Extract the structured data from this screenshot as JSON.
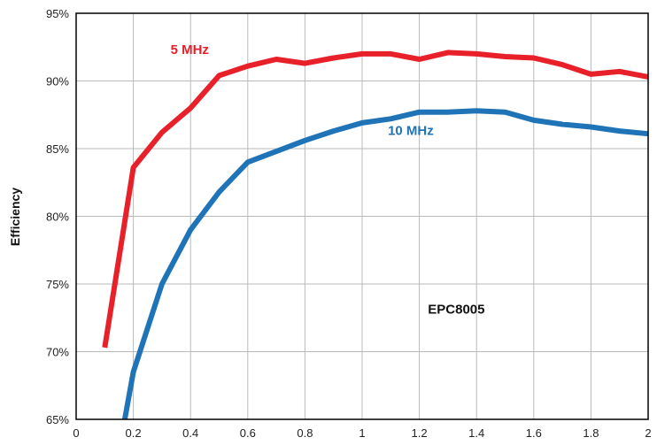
{
  "chart_data": {
    "type": "line",
    "title": "",
    "xlabel": "",
    "ylabel": "Efficiency",
    "xlim": [
      0,
      2
    ],
    "ylim": [
      65,
      95
    ],
    "grid": true,
    "x_ticks": [
      "0",
      "0.2",
      "0.4",
      "0.6",
      "0.8",
      "1",
      "1.2",
      "1.4",
      "1.6",
      "1.8",
      "2"
    ],
    "y_ticks": [
      "65%",
      "70%",
      "75%",
      "80%",
      "85%",
      "90%",
      "95%"
    ],
    "series": [
      {
        "name": "5 MHz",
        "color": "#e8202a",
        "x": [
          0.1,
          0.2,
          0.3,
          0.4,
          0.5,
          0.6,
          0.7,
          0.8,
          0.9,
          1.0,
          1.1,
          1.2,
          1.3,
          1.4,
          1.5,
          1.6,
          1.7,
          1.8,
          1.9,
          2.0
        ],
        "y": [
          70.3,
          83.6,
          86.2,
          88.0,
          90.4,
          91.1,
          91.6,
          91.3,
          91.7,
          92.0,
          92.0,
          91.6,
          92.1,
          92.0,
          91.8,
          91.7,
          91.2,
          90.5,
          90.7,
          90.3
        ]
      },
      {
        "name": "10 MHz",
        "color": "#1f73b7",
        "x": [
          0.17,
          0.2,
          0.3,
          0.4,
          0.5,
          0.6,
          0.7,
          0.8,
          0.9,
          1.0,
          1.1,
          1.2,
          1.3,
          1.4,
          1.5,
          1.6,
          1.7,
          1.8,
          1.9,
          2.0
        ],
        "y": [
          65.0,
          68.5,
          75.0,
          79.0,
          81.8,
          84.0,
          84.8,
          85.6,
          86.3,
          86.9,
          87.2,
          87.7,
          87.7,
          87.8,
          87.7,
          87.1,
          86.8,
          86.6,
          86.3,
          86.1
        ]
      }
    ],
    "annotations": [
      {
        "text": "5 MHz",
        "x": 0.33,
        "y": 92.0,
        "color": "#e8202a"
      },
      {
        "text": "10 MHz",
        "x": 1.09,
        "y": 86.0,
        "color": "#1f73b7"
      },
      {
        "text": "EPC8005",
        "x": 1.23,
        "y": 72.8,
        "color": "#111111"
      }
    ]
  }
}
